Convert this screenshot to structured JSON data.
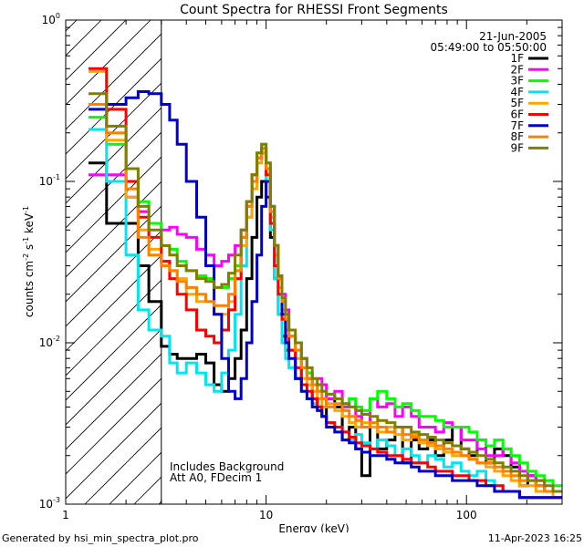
{
  "chart_data": {
    "type": "line",
    "title": "Count Spectra for RHESSI Front Segments",
    "xlabel": "Energy (keV)",
    "ylabel": "counts cm",
    "ylabel_exp1": "-2",
    "ylabel_mid": " s",
    "ylabel_exp2": "-1",
    "ylabel_end": " keV",
    "ylabel_exp3": "-1",
    "xscale": "log",
    "yscale": "log",
    "xlim": [
      1,
      300
    ],
    "ylim": [
      0.001,
      1
    ],
    "x_ticks": [
      {
        "value": 1,
        "label": "1"
      },
      {
        "value": 10,
        "label": "10"
      },
      {
        "value": 100,
        "label": "100"
      }
    ],
    "y_ticks": [
      {
        "value": 0.001,
        "base": "10",
        "exp": "-3"
      },
      {
        "value": 0.01,
        "base": "10",
        "exp": "-2"
      },
      {
        "value": 0.1,
        "base": "10",
        "exp": "-1"
      },
      {
        "value": 1,
        "base": "10",
        "exp": "0"
      }
    ],
    "date": "21-Jun-2005",
    "time_range": "05:49:00 to 05:50:00",
    "annotation_lines": [
      "Includes Background",
      "Att A0, FDecim 1"
    ],
    "hatched_region": {
      "xmin": 1,
      "xmax": 3
    },
    "energy_edges": [
      1.3,
      1.6,
      2.0,
      2.3,
      2.6,
      3.0,
      3.3,
      3.6,
      4.0,
      4.5,
      5.0,
      5.5,
      6.0,
      6.5,
      7.0,
      7.5,
      8.0,
      8.5,
      9.0,
      9.5,
      10.0,
      10.5,
      11.0,
      11.5,
      12.0,
      12.5,
      13.0,
      14,
      15,
      16,
      17,
      18,
      19,
      20,
      22,
      24,
      26,
      28,
      30,
      33,
      36,
      40,
      44,
      48,
      53,
      58,
      64,
      70,
      77,
      85,
      94,
      103,
      113,
      125,
      138,
      152,
      167,
      184,
      202,
      222,
      245,
      270,
      300
    ],
    "series": [
      {
        "name": "1F",
        "color": "#000000",
        "values": [
          0.13,
          0.055,
          0.055,
          0.03,
          0.018,
          0.0095,
          0.0085,
          0.008,
          0.008,
          0.0085,
          0.0075,
          0.0055,
          0.005,
          0.006,
          0.008,
          0.012,
          0.025,
          0.045,
          0.08,
          0.1,
          0.08,
          0.045,
          0.025,
          0.015,
          0.011,
          0.009,
          0.009,
          0.006,
          0.008,
          0.006,
          0.0045,
          0.004,
          0.0035,
          0.0045,
          0.004,
          0.0025,
          0.003,
          0.0022,
          0.0015,
          0.003,
          0.0022,
          0.0025,
          0.003,
          0.0018,
          0.0025,
          0.0022,
          0.0025,
          0.002,
          0.0025,
          0.003,
          0.0022,
          0.002,
          0.0025,
          0.0018,
          0.0022,
          0.002,
          0.0017,
          0.0013,
          0.0015,
          0.0013,
          0.0012,
          0.0011
        ]
      },
      {
        "name": "2F",
        "color": "#ff00ff",
        "values": [
          0.11,
          0.11,
          0.08,
          0.065,
          0.055,
          0.05,
          0.052,
          0.047,
          0.045,
          0.038,
          0.035,
          0.03,
          0.032,
          0.035,
          0.04,
          0.05,
          0.07,
          0.1,
          0.14,
          0.16,
          0.12,
          0.06,
          0.035,
          0.025,
          0.02,
          0.016,
          0.011,
          0.01,
          0.008,
          0.0065,
          0.006,
          0.006,
          0.0055,
          0.0045,
          0.005,
          0.004,
          0.0045,
          0.0035,
          0.003,
          0.0045,
          0.004,
          0.0042,
          0.0035,
          0.004,
          0.0035,
          0.003,
          0.003,
          0.0028,
          0.0032,
          0.003,
          0.0025,
          0.0025,
          0.0022,
          0.002,
          0.002,
          0.0022,
          0.0018,
          0.0016,
          0.0015,
          0.0014,
          0.0012,
          0.0012
        ]
      },
      {
        "name": "3F",
        "color": "#00ff00",
        "values": [
          0.25,
          0.17,
          0.1,
          0.075,
          0.055,
          0.04,
          0.038,
          0.032,
          0.028,
          0.026,
          0.025,
          0.022,
          0.022,
          0.025,
          0.03,
          0.045,
          0.07,
          0.11,
          0.15,
          0.17,
          0.13,
          0.07,
          0.04,
          0.025,
          0.018,
          0.014,
          0.011,
          0.009,
          0.007,
          0.0065,
          0.0055,
          0.005,
          0.005,
          0.0048,
          0.0045,
          0.0042,
          0.0045,
          0.004,
          0.0038,
          0.0045,
          0.005,
          0.0045,
          0.004,
          0.0042,
          0.0038,
          0.0035,
          0.0035,
          0.0033,
          0.003,
          0.003,
          0.003,
          0.0028,
          0.0025,
          0.0023,
          0.0025,
          0.0022,
          0.002,
          0.0018,
          0.0016,
          0.0015,
          0.0014,
          0.0013
        ]
      },
      {
        "name": "4F",
        "color": "#00e5ee",
        "values": [
          0.21,
          0.1,
          0.035,
          0.016,
          0.012,
          0.011,
          0.0075,
          0.0065,
          0.0075,
          0.0065,
          0.0055,
          0.005,
          0.0065,
          0.009,
          0.015,
          0.03,
          0.06,
          0.1,
          0.13,
          0.15,
          0.1,
          0.05,
          0.025,
          0.015,
          0.01,
          0.008,
          0.007,
          0.006,
          0.005,
          0.0045,
          0.0042,
          0.004,
          0.0035,
          0.0032,
          0.003,
          0.0028,
          0.0025,
          0.0027,
          0.0024,
          0.0022,
          0.0025,
          0.0023,
          0.002,
          0.0022,
          0.002,
          0.0018,
          0.002,
          0.0019,
          0.0017,
          0.0018,
          0.0016,
          0.0015,
          0.0016,
          0.0014,
          0.0013,
          0.0012,
          0.0012,
          0.0011,
          0.0011,
          0.0011,
          0.0011,
          0.0011
        ]
      },
      {
        "name": "5F",
        "color": "#ffa500",
        "values": [
          0.48,
          0.18,
          0.08,
          0.05,
          0.038,
          0.032,
          0.028,
          0.025,
          0.02,
          0.018,
          0.018,
          0.015,
          0.015,
          0.018,
          0.025,
          0.04,
          0.06,
          0.09,
          0.13,
          0.15,
          0.11,
          0.06,
          0.035,
          0.022,
          0.016,
          0.012,
          0.009,
          0.008,
          0.006,
          0.0055,
          0.005,
          0.0045,
          0.004,
          0.0042,
          0.0038,
          0.0035,
          0.0032,
          0.003,
          0.0032,
          0.003,
          0.0028,
          0.003,
          0.0027,
          0.0025,
          0.0027,
          0.0024,
          0.0023,
          0.0022,
          0.0021,
          0.002,
          0.002,
          0.0019,
          0.0018,
          0.0017,
          0.0016,
          0.0015,
          0.0014,
          0.0013,
          0.0013,
          0.0012,
          0.0012,
          0.0011
        ]
      },
      {
        "name": "6F",
        "color": "#ff0000",
        "values": [
          0.5,
          0.28,
          0.1,
          0.06,
          0.045,
          0.032,
          0.025,
          0.02,
          0.016,
          0.012,
          0.011,
          0.01,
          0.012,
          0.016,
          0.025,
          0.045,
          0.075,
          0.11,
          0.14,
          0.16,
          0.11,
          0.055,
          0.03,
          0.02,
          0.014,
          0.011,
          0.009,
          0.007,
          0.0055,
          0.005,
          0.0045,
          0.004,
          0.0035,
          0.0032,
          0.003,
          0.0028,
          0.0026,
          0.0024,
          0.0023,
          0.0022,
          0.0021,
          0.002,
          0.002,
          0.0019,
          0.0018,
          0.0018,
          0.0017,
          0.0016,
          0.0016,
          0.0015,
          0.0015,
          0.0014,
          0.0014,
          0.0013,
          0.0013,
          0.0012,
          0.0012,
          0.0011,
          0.0011,
          0.0011,
          0.0011,
          0.0011
        ]
      },
      {
        "name": "7F",
        "color": "#0000cc",
        "values": [
          0.28,
          0.3,
          0.33,
          0.36,
          0.35,
          0.3,
          0.24,
          0.17,
          0.1,
          0.06,
          0.03,
          0.015,
          0.008,
          0.005,
          0.0045,
          0.006,
          0.01,
          0.018,
          0.035,
          0.07,
          0.1,
          0.07,
          0.04,
          0.025,
          0.015,
          0.01,
          0.008,
          0.006,
          0.005,
          0.0045,
          0.004,
          0.0038,
          0.0035,
          0.003,
          0.0028,
          0.0025,
          0.0024,
          0.0022,
          0.0021,
          0.002,
          0.002,
          0.0019,
          0.0018,
          0.0018,
          0.0017,
          0.0016,
          0.0016,
          0.0015,
          0.0015,
          0.0014,
          0.0014,
          0.0014,
          0.0013,
          0.0013,
          0.0012,
          0.0012,
          0.0012,
          0.0011,
          0.0011,
          0.0011,
          0.0011,
          0.0011
        ]
      },
      {
        "name": "8F",
        "color": "#ff8000",
        "values": [
          0.3,
          0.2,
          0.09,
          0.045,
          0.035,
          0.03,
          0.028,
          0.024,
          0.022,
          0.02,
          0.018,
          0.017,
          0.017,
          0.02,
          0.028,
          0.045,
          0.07,
          0.1,
          0.14,
          0.16,
          0.12,
          0.065,
          0.04,
          0.025,
          0.018,
          0.014,
          0.011,
          0.009,
          0.007,
          0.006,
          0.0055,
          0.005,
          0.0045,
          0.004,
          0.0042,
          0.0038,
          0.0035,
          0.0033,
          0.003,
          0.0032,
          0.003,
          0.0028,
          0.003,
          0.0027,
          0.0026,
          0.0025,
          0.0024,
          0.0023,
          0.0022,
          0.0021,
          0.002,
          0.0019,
          0.0018,
          0.0018,
          0.0017,
          0.0016,
          0.0015,
          0.0014,
          0.0014,
          0.0013,
          0.0012,
          0.0012
        ]
      },
      {
        "name": "9F",
        "color": "#808000",
        "values": [
          0.35,
          0.22,
          0.12,
          0.07,
          0.05,
          0.04,
          0.035,
          0.03,
          0.028,
          0.025,
          0.024,
          0.022,
          0.023,
          0.027,
          0.035,
          0.05,
          0.075,
          0.11,
          0.15,
          0.17,
          0.13,
          0.07,
          0.04,
          0.026,
          0.019,
          0.015,
          0.012,
          0.01,
          0.008,
          0.007,
          0.006,
          0.0055,
          0.005,
          0.0048,
          0.0045,
          0.0042,
          0.004,
          0.0038,
          0.0036,
          0.0035,
          0.0033,
          0.0032,
          0.003,
          0.003,
          0.0028,
          0.0027,
          0.0026,
          0.0025,
          0.0024,
          0.0023,
          0.0022,
          0.0021,
          0.002,
          0.0019,
          0.0018,
          0.0017,
          0.0016,
          0.0015,
          0.0014,
          0.0014,
          0.0013,
          0.0012
        ]
      }
    ]
  },
  "footer": {
    "left": "Generated by hsi_min_spectra_plot.pro",
    "right": "11-Apr-2023 16:25"
  }
}
